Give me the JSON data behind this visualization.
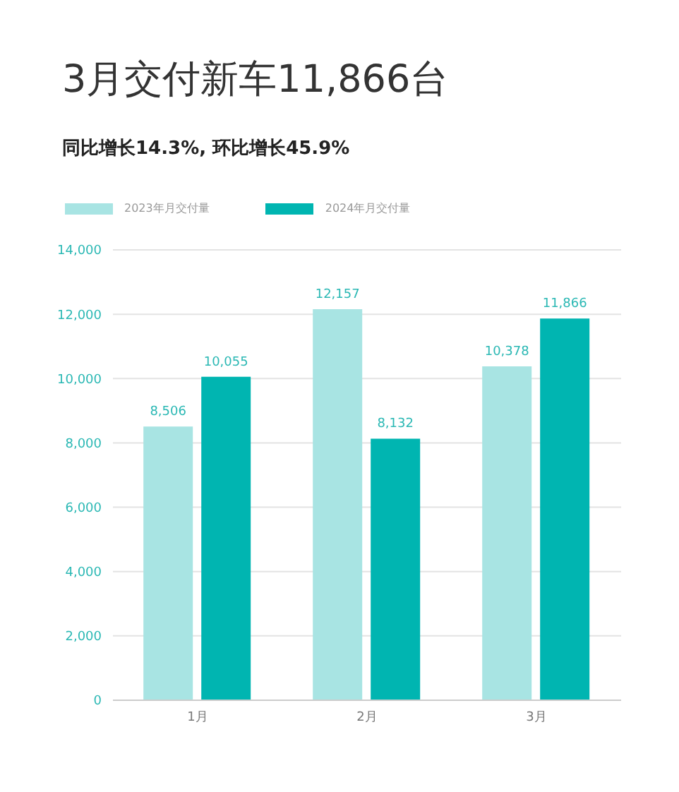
{
  "chart_data": {
    "type": "bar",
    "title": "3月交付新车11,866台",
    "subtitle": "同比增长14.3%, 环比增长45.9%",
    "categories": [
      "1月",
      "2月",
      "3月"
    ],
    "series": [
      {
        "name": "2023年月交付量",
        "color": "#a8e4e3",
        "values": [
          8506,
          12157,
          10378
        ],
        "value_labels": [
          "8,506",
          "12,157",
          "10,378"
        ]
      },
      {
        "name": "2024年月交付量",
        "color": "#00b5b1",
        "values": [
          10055,
          8132,
          11866
        ],
        "value_labels": [
          "10,055",
          "8,132",
          "11,866"
        ]
      }
    ],
    "ylim": [
      0,
      14000
    ],
    "yticks": [
      0,
      {
        "value": 2000,
        "label": "2,000"
      },
      {
        "value": 4000,
        "label": "4,000"
      },
      {
        "value": 6000,
        "label": "6,000"
      },
      {
        "value": 8000,
        "label": "8,000"
      },
      {
        "value": 10000,
        "label": "10,000"
      },
      {
        "value": 12000,
        "label": "12,000"
      },
      {
        "value": 14000,
        "label": "14,000"
      }
    ],
    "grid": "y",
    "legend": "top left"
  }
}
